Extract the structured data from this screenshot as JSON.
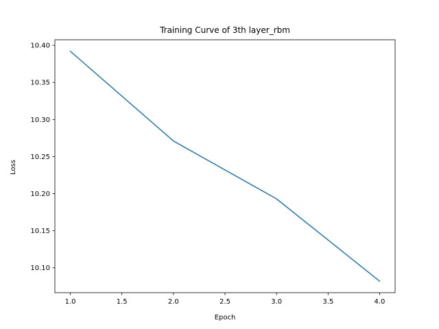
{
  "chart_data": {
    "type": "line",
    "title": "Training Curve of 3th layer_rbm",
    "xlabel": "Epoch",
    "ylabel": "Loss",
    "x": [
      1.0,
      2.0,
      3.0,
      4.0
    ],
    "series": [
      {
        "values": [
          10.392,
          10.271,
          10.193,
          10.082
        ],
        "color": "#1f77b4"
      }
    ],
    "xlim": [
      0.85,
      4.15
    ],
    "ylim": [
      10.0665,
      10.4075
    ],
    "xticks": [
      1.0,
      1.5,
      2.0,
      2.5,
      3.0,
      3.5,
      4.0
    ],
    "xtick_labels": [
      "1.0",
      "1.5",
      "2.0",
      "2.5",
      "3.0",
      "3.5",
      "4.0"
    ],
    "yticks": [
      10.1,
      10.15,
      10.2,
      10.25,
      10.3,
      10.35,
      10.4
    ],
    "ytick_labels": [
      "10.10",
      "10.15",
      "10.20",
      "10.25",
      "10.30",
      "10.35",
      "10.40"
    ],
    "grid": false,
    "legend": "none"
  }
}
